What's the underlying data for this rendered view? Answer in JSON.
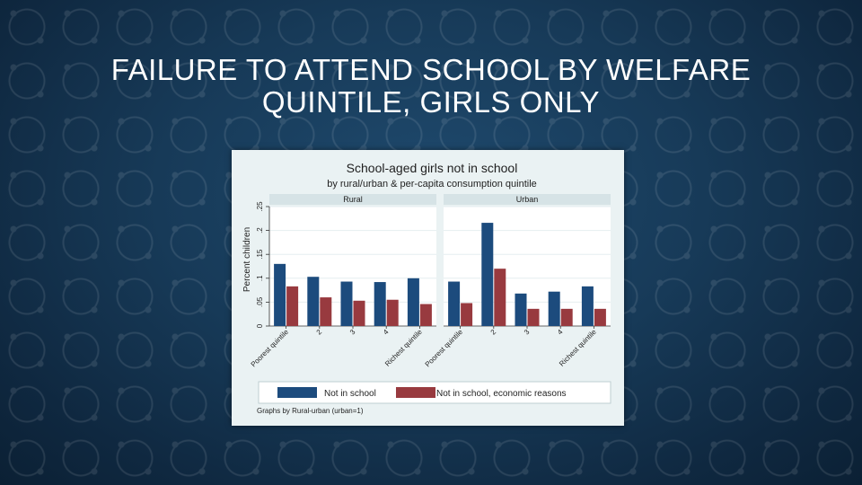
{
  "slide": {
    "title_line1": "FAILURE TO ATTEND SCHOOL BY WELFARE",
    "title_line2": "QUINTILE, GIRLS ONLY"
  },
  "chart_data": {
    "type": "bar",
    "title": "School-aged girls not in school",
    "subtitle": "by rural/urban & per-capita consumption quintile",
    "ylabel": "Percent children",
    "ylim": [
      0,
      0.25
    ],
    "yticks": [
      "0",
      ".05",
      ".1",
      ".15",
      ".2",
      ".25"
    ],
    "categories": [
      "Poorest quintile",
      "2",
      "3",
      "4",
      "Richest quintile"
    ],
    "panels": [
      {
        "name": "Rural",
        "series": [
          {
            "name": "Not in school",
            "values": [
              0.13,
              0.103,
              0.093,
              0.092,
              0.1
            ]
          },
          {
            "name": "Not in school, economic reasons",
            "values": [
              0.083,
              0.06,
              0.053,
              0.055,
              0.046
            ]
          }
        ]
      },
      {
        "name": "Urban",
        "series": [
          {
            "name": "Not in school",
            "values": [
              0.093,
              0.216,
              0.068,
              0.072,
              0.083
            ]
          },
          {
            "name": "Not in school, economic reasons",
            "values": [
              0.048,
              0.12,
              0.036,
              0.036,
              0.036
            ]
          }
        ]
      }
    ],
    "colors": {
      "series1": "#1c4b7d",
      "series2": "#983a3f"
    },
    "legend": {
      "position": "bottom",
      "items": [
        "Not in school",
        "Not in school, economic reasons"
      ]
    },
    "note": "Graphs by Rural-urban (urban=1)",
    "grid": true
  }
}
